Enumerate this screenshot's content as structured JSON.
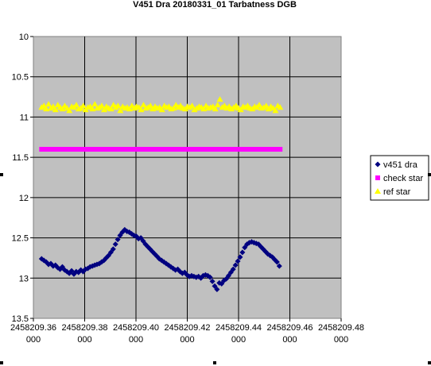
{
  "chart_data": {
    "type": "scatter",
    "title": "V451 Dra 20180331_01 Tarbatness DGB",
    "xlabel": "",
    "ylabel": "",
    "xlim": [
      2458209.36,
      2458209.48
    ],
    "ylim": [
      10,
      13.5
    ],
    "y_reversed": true,
    "grid": true,
    "plot_background": "#c0c0c0",
    "legend_position": "right",
    "x_tick_values": [
      2458209.36,
      2458209.38,
      2458209.4,
      2458209.42,
      2458209.44,
      2458209.46,
      2458209.48
    ],
    "x_tick_labels": [
      [
        "2458209.36",
        "000"
      ],
      [
        "2458209.38",
        "000"
      ],
      [
        "2458209.40",
        "000"
      ],
      [
        "2458209.42",
        "000"
      ],
      [
        "2458209.44",
        "000"
      ],
      [
        "2458209.46",
        "000"
      ],
      [
        "2458209.48",
        "000"
      ]
    ],
    "y_tick_values": [
      10,
      10.5,
      11,
      11.5,
      12,
      12.5,
      13,
      13.5
    ],
    "y_tick_labels": [
      "10",
      "10.5",
      "11",
      "11.5",
      "12",
      "12.5",
      "13",
      "13.5"
    ],
    "series": [
      {
        "name": "v451 dra",
        "color": "#000080",
        "marker": "diamond",
        "points": [
          [
            2458209.3632,
            12.76
          ],
          [
            2458209.3641,
            12.78
          ],
          [
            2458209.365,
            12.8
          ],
          [
            2458209.3659,
            12.83
          ],
          [
            2458209.3668,
            12.82
          ],
          [
            2458209.3677,
            12.85
          ],
          [
            2458209.3686,
            12.84
          ],
          [
            2458209.3695,
            12.87
          ],
          [
            2458209.3704,
            12.89
          ],
          [
            2458209.3713,
            12.86
          ],
          [
            2458209.3722,
            12.9
          ],
          [
            2458209.3731,
            12.92
          ],
          [
            2458209.374,
            12.94
          ],
          [
            2458209.3749,
            12.91
          ],
          [
            2458209.3758,
            12.95
          ],
          [
            2458209.3767,
            12.92
          ],
          [
            2458209.3776,
            12.93
          ],
          [
            2458209.3785,
            12.9
          ],
          [
            2458209.3794,
            12.92
          ],
          [
            2458209.3803,
            12.89
          ],
          [
            2458209.3812,
            12.88
          ],
          [
            2458209.3821,
            12.86
          ],
          [
            2458209.383,
            12.85
          ],
          [
            2458209.3839,
            12.84
          ],
          [
            2458209.3848,
            12.83
          ],
          [
            2458209.3857,
            12.82
          ],
          [
            2458209.3866,
            12.8
          ],
          [
            2458209.3875,
            12.78
          ],
          [
            2458209.3884,
            12.75
          ],
          [
            2458209.3893,
            12.72
          ],
          [
            2458209.3902,
            12.68
          ],
          [
            2458209.3911,
            12.64
          ],
          [
            2458209.392,
            12.58
          ],
          [
            2458209.3929,
            12.52
          ],
          [
            2458209.3938,
            12.47
          ],
          [
            2458209.3947,
            12.43
          ],
          [
            2458209.3956,
            12.4
          ],
          [
            2458209.3965,
            12.42
          ],
          [
            2458209.3974,
            12.43
          ],
          [
            2458209.3983,
            12.45
          ],
          [
            2458209.3992,
            12.47
          ],
          [
            2458209.4001,
            12.48
          ],
          [
            2458209.401,
            12.51
          ],
          [
            2458209.4019,
            12.5
          ],
          [
            2458209.4028,
            12.54
          ],
          [
            2458209.4037,
            12.58
          ],
          [
            2458209.4046,
            12.61
          ],
          [
            2458209.4055,
            12.64
          ],
          [
            2458209.4064,
            12.67
          ],
          [
            2458209.4073,
            12.7
          ],
          [
            2458209.4082,
            12.73
          ],
          [
            2458209.4091,
            12.76
          ],
          [
            2458209.41,
            12.78
          ],
          [
            2458209.4109,
            12.8
          ],
          [
            2458209.4118,
            12.82
          ],
          [
            2458209.4127,
            12.84
          ],
          [
            2458209.4136,
            12.86
          ],
          [
            2458209.4145,
            12.88
          ],
          [
            2458209.4154,
            12.9
          ],
          [
            2458209.4163,
            12.89
          ],
          [
            2458209.4172,
            12.92
          ],
          [
            2458209.4181,
            12.94
          ],
          [
            2458209.419,
            12.93
          ],
          [
            2458209.4199,
            12.96
          ],
          [
            2458209.4208,
            12.98
          ],
          [
            2458209.4217,
            12.97
          ],
          [
            2458209.4226,
            12.98
          ],
          [
            2458209.4235,
            12.99
          ],
          [
            2458209.4244,
            12.98
          ],
          [
            2458209.4253,
            13.0
          ],
          [
            2458209.4262,
            12.97
          ],
          [
            2458209.4271,
            12.96
          ],
          [
            2458209.428,
            12.97
          ],
          [
            2458209.4289,
            12.99
          ],
          [
            2458209.4298,
            13.04
          ],
          [
            2458209.4307,
            13.1
          ],
          [
            2458209.4316,
            13.14
          ],
          [
            2458209.4325,
            13.06
          ],
          [
            2458209.4334,
            13.07
          ],
          [
            2458209.4343,
            13.03
          ],
          [
            2458209.4352,
            13.01
          ],
          [
            2458209.4361,
            12.97
          ],
          [
            2458209.437,
            12.93
          ],
          [
            2458209.4379,
            12.89
          ],
          [
            2458209.4388,
            12.84
          ],
          [
            2458209.4397,
            12.79
          ],
          [
            2458209.4406,
            12.74
          ],
          [
            2458209.4415,
            12.68
          ],
          [
            2458209.4424,
            12.62
          ],
          [
            2458209.4433,
            12.58
          ],
          [
            2458209.4442,
            12.56
          ],
          [
            2458209.4451,
            12.55
          ],
          [
            2458209.446,
            12.56
          ],
          [
            2458209.4469,
            12.57
          ],
          [
            2458209.4478,
            12.58
          ],
          [
            2458209.4487,
            12.61
          ],
          [
            2458209.4496,
            12.64
          ],
          [
            2458209.4505,
            12.67
          ],
          [
            2458209.4514,
            12.7
          ],
          [
            2458209.4523,
            12.72
          ],
          [
            2458209.4532,
            12.74
          ],
          [
            2458209.4541,
            12.77
          ],
          [
            2458209.455,
            12.8
          ],
          [
            2458209.4559,
            12.85
          ]
        ]
      },
      {
        "name": "check star",
        "color": "#ff00ff",
        "marker": "square",
        "y_constant": 11.4,
        "x_range": [
          2458209.3632,
          2458209.4562
        ],
        "count": 104
      },
      {
        "name": "ref star",
        "color": "#ffff00",
        "marker": "triangle",
        "x_range": [
          2458209.3632,
          2458209.4562
        ],
        "count": 104,
        "y_values": [
          10.88,
          10.86,
          10.9,
          10.84,
          10.89,
          10.87,
          10.91,
          10.85,
          10.88,
          10.9,
          10.86,
          10.89,
          10.92,
          10.87,
          10.88,
          10.85,
          10.9,
          10.89,
          10.86,
          10.91,
          10.88,
          10.87,
          10.9,
          10.84,
          10.89,
          10.88,
          10.86,
          10.91,
          10.87,
          10.89,
          10.9,
          10.85,
          10.88,
          10.86,
          10.92,
          10.87,
          10.89,
          10.88,
          10.9,
          10.86,
          10.89,
          10.87,
          10.88,
          10.91,
          10.85,
          10.89,
          10.88,
          10.86,
          10.9,
          10.87,
          10.89,
          10.88,
          10.91,
          10.86,
          10.88,
          10.87,
          10.9,
          10.89,
          10.85,
          10.88,
          10.86,
          10.89,
          10.9,
          10.87,
          10.88,
          10.86,
          10.91,
          10.89,
          10.87,
          10.88,
          10.9,
          10.86,
          10.89,
          10.88,
          10.87,
          10.9,
          10.85,
          10.78,
          10.88,
          10.86,
          10.89,
          10.87,
          10.9,
          10.88,
          10.86,
          10.89,
          10.91,
          10.87,
          10.88,
          10.86,
          10.89,
          10.9,
          10.87,
          10.88,
          10.85,
          10.89,
          10.88,
          10.86,
          10.9,
          10.87,
          10.89,
          10.92,
          10.86,
          10.88
        ]
      }
    ]
  }
}
